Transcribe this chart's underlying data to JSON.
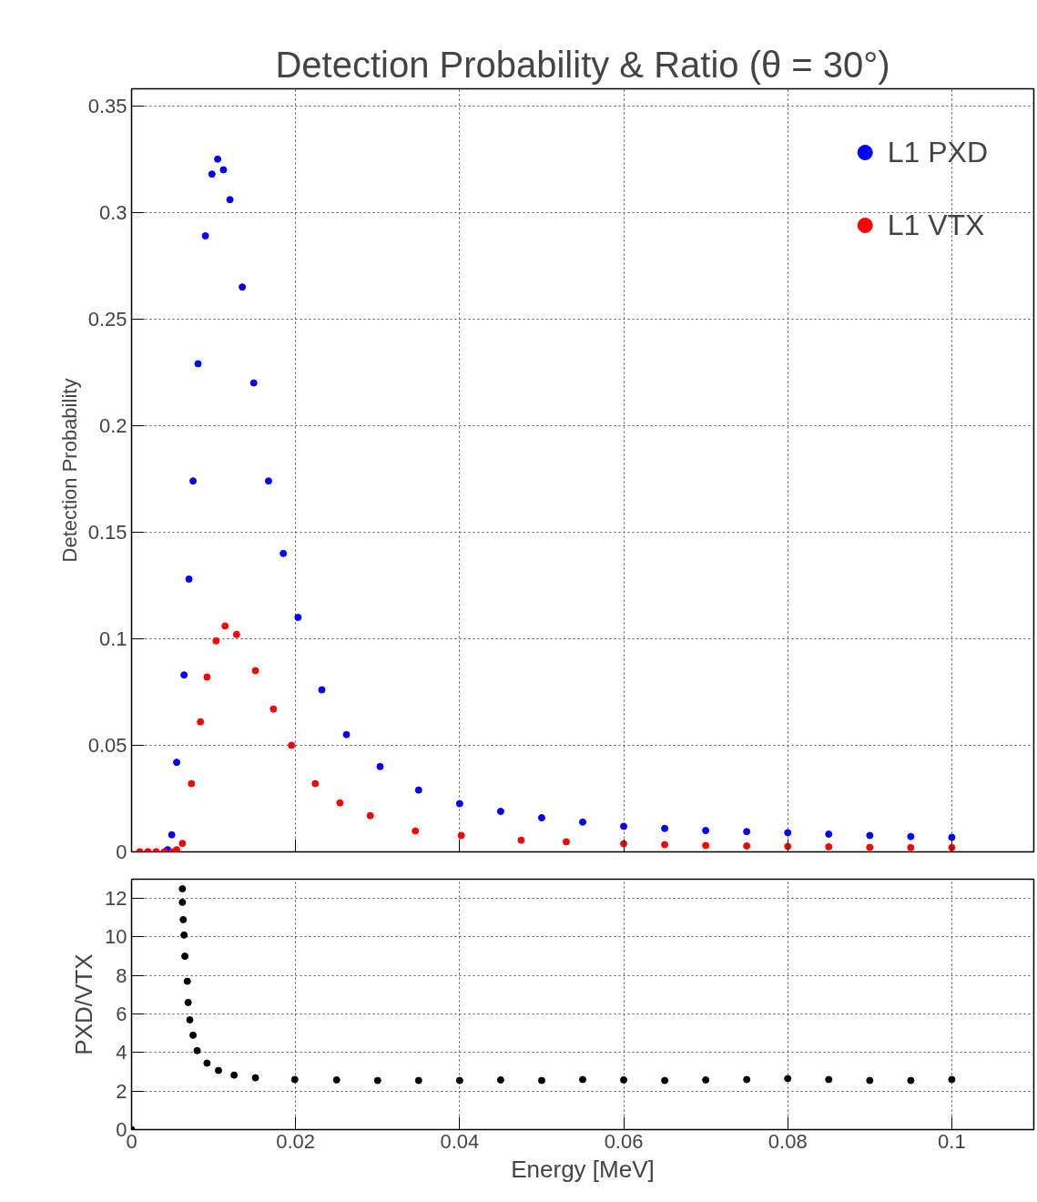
{
  "chart_data": [
    {
      "type": "scatter",
      "title": "Detection Probability & Ratio (θ = 30°)",
      "ylabel": "Detection Probability",
      "xlim": [
        0,
        0.11
      ],
      "xticks": [
        0,
        0.02,
        0.04,
        0.06,
        0.08,
        0.1
      ],
      "ylim": [
        0,
        0.358
      ],
      "yticks": [
        0,
        0.05,
        0.1,
        0.15,
        0.2,
        0.25,
        0.3,
        0.35
      ],
      "tick_labels": "y",
      "grid": true,
      "legend": "top right",
      "marker": "circle",
      "series": [
        {
          "name": "L1 PXD",
          "color": "#0000ff",
          "x": [
            0.001,
            0.002,
            0.003,
            0.004,
            0.0044,
            0.0049,
            0.0055,
            0.0064,
            0.007,
            0.0075,
            0.0081,
            0.009,
            0.0098,
            0.0105,
            0.0112,
            0.012,
            0.0135,
            0.0149,
            0.0167,
            0.0185,
            0.0203,
            0.0232,
            0.0262,
            0.0303,
            0.035,
            0.04,
            0.045,
            0.05,
            0.055,
            0.06,
            0.065,
            0.07,
            0.075,
            0.08,
            0.085,
            0.09,
            0.095,
            0.1
          ],
          "values": [
            0,
            0,
            0,
            0,
            0.001,
            0.008,
            0.042,
            0.083,
            0.128,
            0.174,
            0.229,
            0.289,
            0.318,
            0.325,
            0.32,
            0.306,
            0.265,
            0.22,
            0.174,
            0.14,
            0.11,
            0.076,
            0.055,
            0.04,
            0.029,
            0.0226,
            0.019,
            0.016,
            0.014,
            0.012,
            0.011,
            0.01,
            0.0095,
            0.009,
            0.0083,
            0.0077,
            0.0072,
            0.0068
          ]
        },
        {
          "name": "L1 VTX",
          "color": "#ff0000",
          "x": [
            0.001,
            0.002,
            0.003,
            0.004,
            0.005,
            0.0055,
            0.0062,
            0.0073,
            0.0084,
            0.0092,
            0.0103,
            0.0114,
            0.0128,
            0.0151,
            0.0173,
            0.0195,
            0.0224,
            0.0254,
            0.0291,
            0.0346,
            0.0402,
            0.0475,
            0.053,
            0.06,
            0.065,
            0.07,
            0.075,
            0.08,
            0.085,
            0.09,
            0.095,
            0.1
          ],
          "values": [
            0,
            0,
            0,
            0,
            0,
            0.001,
            0.004,
            0.032,
            0.061,
            0.082,
            0.099,
            0.106,
            0.102,
            0.085,
            0.067,
            0.05,
            0.032,
            0.023,
            0.017,
            0.0098,
            0.0077,
            0.0055,
            0.0047,
            0.0038,
            0.0034,
            0.003,
            0.0028,
            0.0026,
            0.0024,
            0.0021,
            0.002,
            0.002
          ]
        }
      ]
    },
    {
      "type": "scatter",
      "xlabel": "Energy [MeV]",
      "ylabel": "PXD/VTX",
      "xlim": [
        0,
        0.11
      ],
      "xticks": [
        0,
        0.02,
        0.04,
        0.06,
        0.08,
        0.1
      ],
      "ylim": [
        0,
        13
      ],
      "yticks": [
        0,
        2,
        4,
        6,
        8,
        10,
        12
      ],
      "grid": true,
      "marker": "circle",
      "series": [
        {
          "color": "#000000",
          "x": [
            0,
            0.0062,
            0.0062,
            0.0063,
            0.0064,
            0.0065,
            0.0068,
            0.0069,
            0.0071,
            0.0075,
            0.008,
            0.0092,
            0.0106,
            0.0125,
            0.0151,
            0.0199,
            0.025,
            0.03,
            0.035,
            0.04,
            0.045,
            0.05,
            0.055,
            0.06,
            0.065,
            0.07,
            0.075,
            0.08,
            0.085,
            0.09,
            0.095,
            0.1
          ],
          "values": [
            0,
            12.5,
            11.8,
            10.9,
            10.1,
            9.0,
            7.7,
            6.6,
            5.7,
            4.9,
            4.1,
            3.45,
            3.07,
            2.83,
            2.69,
            2.6,
            2.58,
            2.55,
            2.55,
            2.55,
            2.58,
            2.55,
            2.6,
            2.58,
            2.55,
            2.58,
            2.6,
            2.65,
            2.6,
            2.55,
            2.55,
            2.6
          ]
        }
      ]
    }
  ]
}
